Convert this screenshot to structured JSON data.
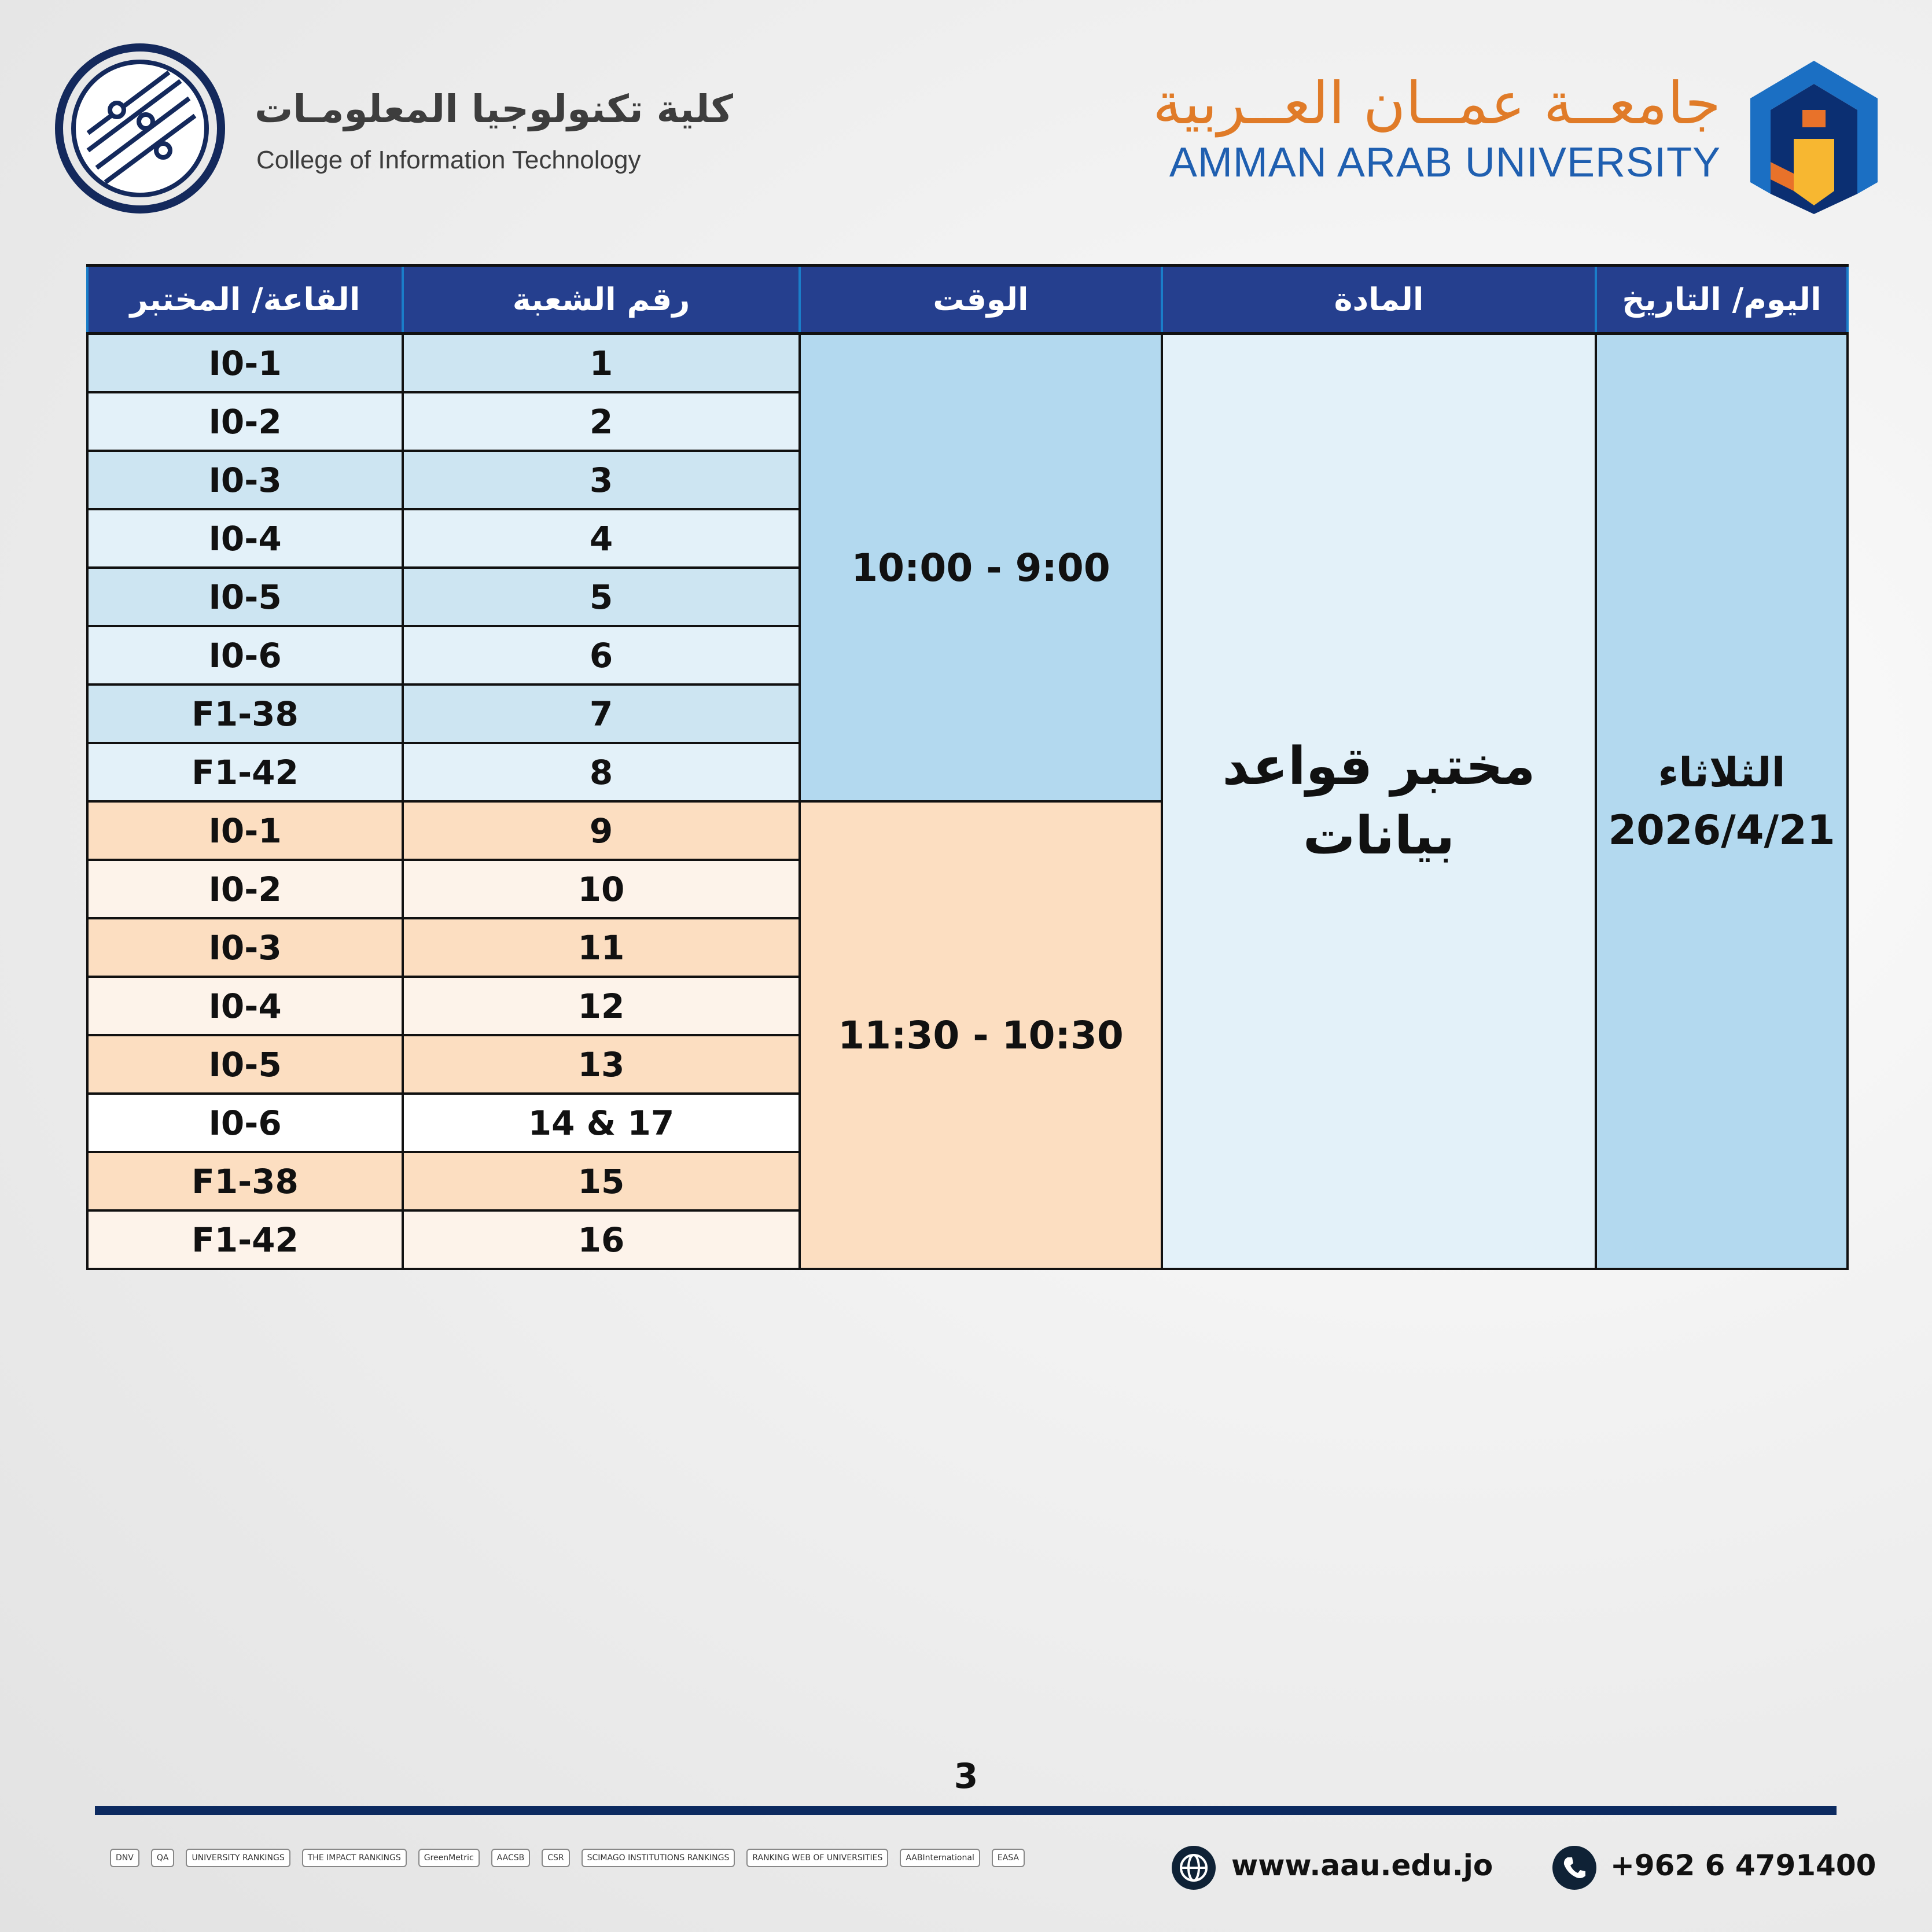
{
  "header": {
    "college_name_ar": "كلية تكنولوجيا المعلومـات",
    "college_name_en": "College of Information Technology",
    "university_name_ar": "جامعــة عمــان العــربية",
    "university_name_en": "AMMAN ARAB UNIVERSITY"
  },
  "colors": {
    "header_bg": "#253f8e",
    "university_ar": "#e07b28",
    "university_en": "#1f5fb0",
    "group1_time": "#b3d9ef",
    "group2_time": "#fcdec1"
  },
  "table": {
    "columns": [
      "القاعة/ المختبر",
      "رقم الشعبة",
      "الوقت",
      "المادة",
      "اليوم/ التاريخ"
    ],
    "day": "الثلاثاء",
    "date": "2026/4/21",
    "subject": "مختبر قواعد بيانات",
    "time_slots": [
      "10:00 - 9:00",
      "11:30 - 10:30"
    ],
    "rows": [
      {
        "room": "I0-1",
        "section": "1"
      },
      {
        "room": "I0-2",
        "section": "2"
      },
      {
        "room": "I0-3",
        "section": "3"
      },
      {
        "room": "I0-4",
        "section": "4"
      },
      {
        "room": "I0-5",
        "section": "5"
      },
      {
        "room": "I0-6",
        "section": "6"
      },
      {
        "room": "F1-38",
        "section": "7"
      },
      {
        "room": "F1-42",
        "section": "8"
      },
      {
        "room": "I0-1",
        "section": "9"
      },
      {
        "room": "I0-2",
        "section": "10"
      },
      {
        "room": "I0-3",
        "section": "11"
      },
      {
        "room": "I0-4",
        "section": "12"
      },
      {
        "room": "I0-5",
        "section": "13"
      },
      {
        "room": "I0-6",
        "section": "14 & 17"
      },
      {
        "room": "F1-38",
        "section": "15"
      },
      {
        "room": "F1-42",
        "section": "16"
      }
    ]
  },
  "page_number": "3",
  "footer": {
    "website": "www.aau.edu.jo",
    "phone": "+962 6 4791400",
    "website_icon": "globe-icon",
    "phone_icon": "phone-icon",
    "accreditations": [
      "DNV",
      "QA",
      "UNIVERSITY RANKINGS",
      "THE IMPACT RANKINGS",
      "GreenMetric",
      "AACSB",
      "CSR",
      "SCIMAGO INSTITUTIONS RANKINGS",
      "RANKING WEB OF UNIVERSITIES",
      "AABInternational",
      "EASA"
    ]
  }
}
